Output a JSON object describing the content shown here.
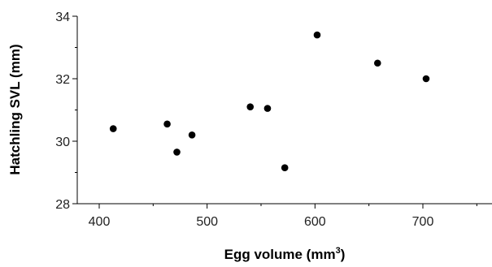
{
  "chart_data": {
    "type": "scatter",
    "title": "",
    "xlabel": "Egg volume (mm³)",
    "xlabel_main": "Egg volume (mm",
    "xlabel_sup": "3",
    "xlabel_end": ")",
    "ylabel": "Hatchling SVL (mm)",
    "xlim": [
      350,
      750
    ],
    "ylim": [
      28,
      34
    ],
    "xticks": [
      400,
      500,
      600,
      700
    ],
    "yticks": [
      28,
      30,
      32,
      34
    ],
    "grid": false,
    "legend": "none",
    "marker_color": "#000000",
    "points": [
      {
        "x": 413,
        "y": 30.4
      },
      {
        "x": 463,
        "y": 30.55
      },
      {
        "x": 472,
        "y": 29.65
      },
      {
        "x": 486,
        "y": 30.2
      },
      {
        "x": 540,
        "y": 31.1
      },
      {
        "x": 556,
        "y": 31.05
      },
      {
        "x": 572,
        "y": 29.15
      },
      {
        "x": 602,
        "y": 33.4
      },
      {
        "x": 658,
        "y": 32.5
      },
      {
        "x": 703,
        "y": 32.0
      }
    ]
  }
}
